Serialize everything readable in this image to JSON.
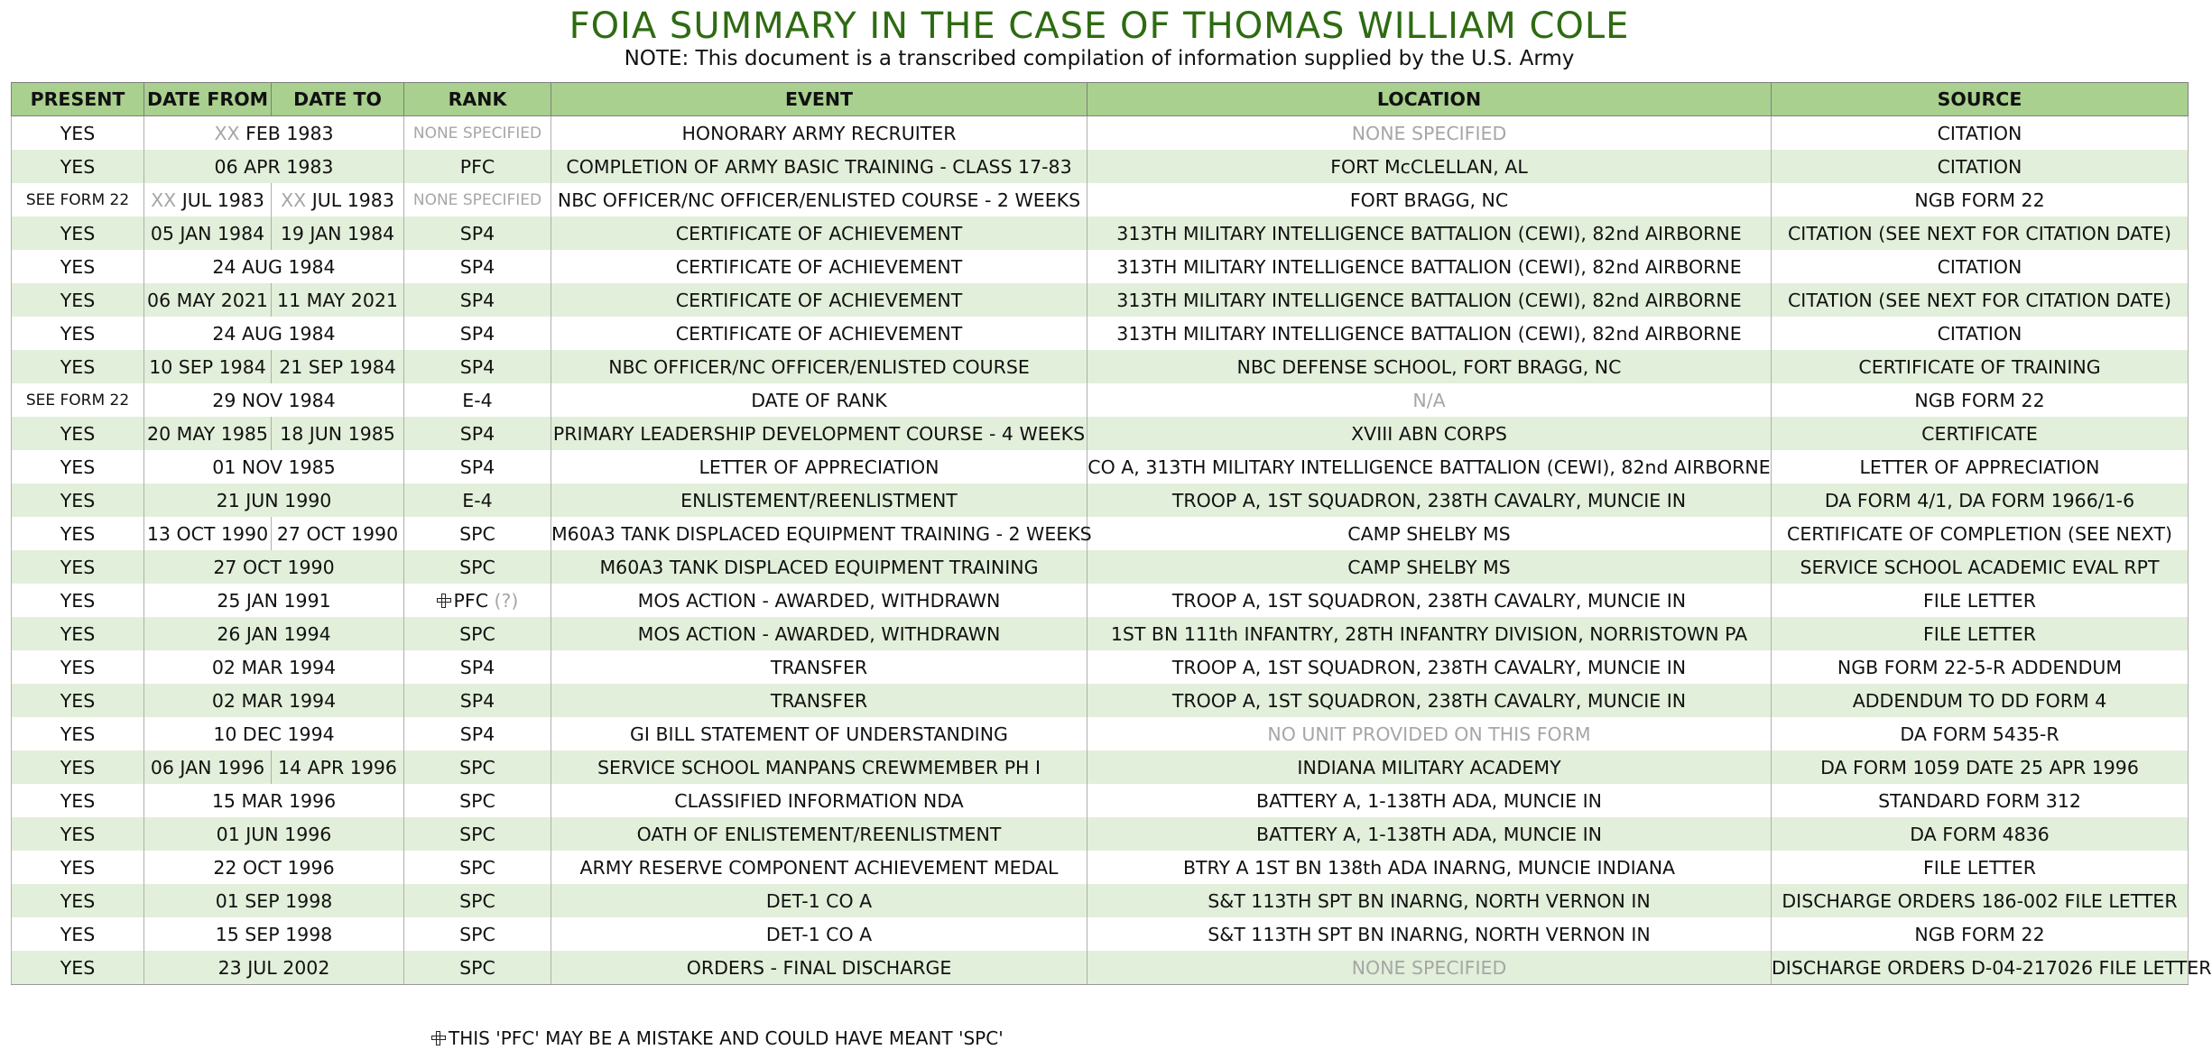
{
  "title": "FOIA SUMMARY IN THE CASE OF THOMAS WILLIAM COLE",
  "subtitle": "NOTE: This document is a transcribed compilation of information supplied by the U.S. Army",
  "headers": {
    "present": "PRESENT",
    "date_from": "DATE FROM",
    "date_to": "DATE TO",
    "rank": "RANK",
    "event": "EVENT",
    "location": "LOCATION",
    "source": "SOURCE"
  },
  "rows": [
    {
      "present": "YES",
      "date": "FEB 1983",
      "date_prefix": "XX",
      "rank": "NONE SPECIFIED",
      "event": "HONORARY ARMY RECRUITER",
      "location": "NONE SPECIFIED",
      "source": "CITATION"
    },
    {
      "present": "YES",
      "date": "06 APR 1983",
      "rank": "PFC",
      "event": "COMPLETION OF ARMY BASIC TRAINING - CLASS 17-83",
      "location": "FORT McCLELLAN, AL",
      "source": "CITATION"
    },
    {
      "present": "SEE FORM 22",
      "date_from": "JUL 1983",
      "date_from_prefix": "XX",
      "date_to": "JUL 1983",
      "date_to_prefix": "XX",
      "rank": "NONE SPECIFIED",
      "event": "NBC OFFICER/NC OFFICER/ENLISTED COURSE - 2 WEEKS",
      "location": "FORT BRAGG, NC",
      "source": "NGB FORM 22"
    },
    {
      "present": "YES",
      "date_from": "05 JAN 1984",
      "date_to": "19 JAN 1984",
      "rank": "SP4",
      "event": "CERTIFICATE OF ACHIEVEMENT",
      "location": "313TH MILITARY INTELLIGENCE BATTALION (CEWI), 82nd AIRBORNE",
      "source": "CITATION (SEE NEXT FOR CITATION DATE)"
    },
    {
      "present": "YES",
      "date": "24 AUG 1984",
      "rank": "SP4",
      "event": "CERTIFICATE OF ACHIEVEMENT",
      "location": "313TH MILITARY INTELLIGENCE BATTALION (CEWI), 82nd AIRBORNE",
      "source": "CITATION"
    },
    {
      "present": "YES",
      "date_from": "06 MAY 2021",
      "date_to": "11 MAY 2021",
      "rank": "SP4",
      "event": "CERTIFICATE OF ACHIEVEMENT",
      "location": "313TH MILITARY INTELLIGENCE BATTALION (CEWI), 82nd AIRBORNE",
      "source": "CITATION (SEE NEXT FOR CITATION DATE)"
    },
    {
      "present": "YES",
      "date": "24 AUG 1984",
      "rank": "SP4",
      "event": "CERTIFICATE OF ACHIEVEMENT",
      "location": "313TH MILITARY INTELLIGENCE BATTALION (CEWI), 82nd AIRBORNE",
      "source": "CITATION"
    },
    {
      "present": "YES",
      "date_from": "10 SEP 1984",
      "date_to": "21 SEP 1984",
      "rank": "SP4",
      "event": "NBC OFFICER/NC OFFICER/ENLISTED COURSE",
      "location": "NBC DEFENSE SCHOOL, FORT BRAGG, NC",
      "source": "CERTIFICATE OF TRAINING"
    },
    {
      "present": "SEE FORM 22",
      "date": "29 NOV 1984",
      "rank": "E-4",
      "event": "DATE OF RANK",
      "location": "N/A",
      "source": "NGB FORM 22"
    },
    {
      "present": "YES",
      "date_from": "20 MAY 1985",
      "date_to": "18 JUN 1985",
      "rank": "SP4",
      "event": "PRIMARY LEADERSHIP DEVELOPMENT COURSE - 4 WEEKS",
      "location": "XVIII ABN CORPS",
      "source": "CERTIFICATE"
    },
    {
      "present": "YES",
      "date": "01 NOV 1985",
      "rank": "SP4",
      "event": "LETTER OF APPRECIATION",
      "location": "CO A, 313TH MILITARY INTELLIGENCE BATTALION (CEWI), 82nd AIRBORNE",
      "source": "LETTER OF APPRECIATION"
    },
    {
      "present": "YES",
      "date": "21 JUN 1990",
      "rank": "E-4",
      "event": "ENLISTEMENT/REENLISTMENT",
      "location": "TROOP A, 1ST SQUADRON, 238TH CAVALRY, MUNCIE IN",
      "source": "DA FORM 4/1, DA FORM 1966/1-6"
    },
    {
      "present": "YES",
      "date_from": "13 OCT 1990",
      "date_to": "27 OCT 1990",
      "rank": "SPC",
      "event": "M60A3 TANK DISPLACED EQUIPMENT TRAINING - 2 WEEKS",
      "location": "CAMP SHELBY MS",
      "source": "CERTIFICATE OF COMPLETION (SEE NEXT)"
    },
    {
      "present": "YES",
      "date": "27 OCT 1990",
      "rank": "SPC",
      "event": "M60A3 TANK DISPLACED EQUIPMENT TRAINING",
      "location": "CAMP SHELBY MS",
      "source": "SERVICE SCHOOL ACADEMIC EVAL RPT"
    },
    {
      "present": "YES",
      "date": "25 JAN 1991",
      "rank": "PFC",
      "rank_suffix": "(?)",
      "event": "MOS ACTION - AWARDED, WITHDRAWN",
      "location": "TROOP A, 1ST SQUADRON, 238TH CAVALRY, MUNCIE IN",
      "source": "FILE LETTER"
    },
    {
      "present": "YES",
      "date": "26 JAN 1994",
      "rank": "SPC",
      "event": "MOS ACTION - AWARDED, WITHDRAWN",
      "location": "1ST BN 111th INFANTRY, 28TH INFANTRY DIVISION, NORRISTOWN PA",
      "source": "FILE LETTER"
    },
    {
      "present": "YES",
      "date": "02 MAR 1994",
      "rank": "SP4",
      "event": "TRANSFER",
      "location": "TROOP A, 1ST SQUADRON, 238TH CAVALRY, MUNCIE IN",
      "source": "NGB FORM 22-5-R ADDENDUM"
    },
    {
      "present": "YES",
      "date": "02 MAR 1994",
      "rank": "SP4",
      "event": "TRANSFER",
      "location": "TROOP A, 1ST SQUADRON, 238TH CAVALRY, MUNCIE IN",
      "source": "ADDENDUM TO DD FORM 4"
    },
    {
      "present": "YES",
      "date": "10 DEC 1994",
      "rank": "SP4",
      "event": "GI BILL STATEMENT OF UNDERSTANDING",
      "location": "NO UNIT PROVIDED ON THIS FORM",
      "source": "DA FORM 5435-R"
    },
    {
      "present": "YES",
      "date_from": "06 JAN 1996",
      "date_to": "14 APR 1996",
      "rank": "SPC",
      "event": "SERVICE SCHOOL MANPANS CREWMEMBER PH I",
      "location": "INDIANA MILITARY ACADEMY",
      "source": "DA FORM 1059 DATE 25 APR 1996"
    },
    {
      "present": "YES",
      "date": "15 MAR 1996",
      "rank": "SPC",
      "event": "CLASSIFIED INFORMATION NDA",
      "location": "BATTERY A, 1-138TH ADA, MUNCIE IN",
      "source": "STANDARD FORM 312"
    },
    {
      "present": "YES",
      "date": "01 JUN 1996",
      "rank": "SPC",
      "event": "OATH OF ENLISTEMENT/REENLISTMENT",
      "location": "BATTERY A, 1-138TH ADA, MUNCIE IN",
      "source": "DA FORM 4836"
    },
    {
      "present": "YES",
      "date": "22 OCT 1996",
      "rank": "SPC",
      "event": "ARMY RESERVE COMPONENT ACHIEVEMENT MEDAL",
      "location": "BTRY A 1ST BN 138th ADA INARNG, MUNCIE INDIANA",
      "source": "FILE LETTER"
    },
    {
      "present": "YES",
      "date": "01 SEP 1998",
      "rank": "SPC",
      "event": "DET-1 CO A",
      "location": "S&T 113TH SPT BN INARNG, NORTH VERNON IN",
      "source": "DISCHARGE ORDERS 186-002 FILE LETTER"
    },
    {
      "present": "YES",
      "date": "15 SEP 1998",
      "rank": "SPC",
      "event": "DET-1 CO A",
      "location": "S&T 113TH SPT BN INARNG, NORTH VERNON IN",
      "source": "NGB FORM 22"
    },
    {
      "present": "YES",
      "date": "23 JUL 2002",
      "rank": "SPC",
      "event": "ORDERS - FINAL DISCHARGE",
      "location": "NONE SPECIFIED",
      "source": "DISCHARGE ORDERS D-04-217026 FILE LETTER"
    }
  ],
  "footnote": "THIS 'PFC' MAY BE A MISTAKE AND COULD HAVE MEANT 'SPC'",
  "muted_values": [
    "NONE SPECIFIED",
    "N/A",
    "NO UNIT PROVIDED ON THIS FORM"
  ],
  "colors": {
    "title": "#2e6b12",
    "header_fill": "#a9d08e",
    "band_fill": "#e2efda",
    "muted_text": "#a6a6a6"
  }
}
